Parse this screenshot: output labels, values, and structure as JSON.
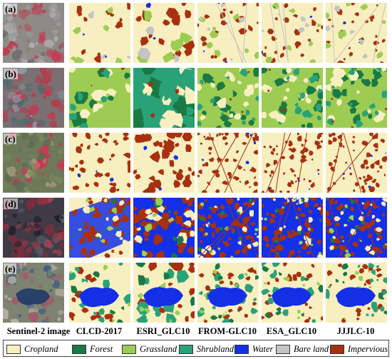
{
  "rows": [
    {
      "label": "(a)"
    },
    {
      "label": "(b)"
    },
    {
      "label": "(c)"
    },
    {
      "label": "(d)"
    },
    {
      "label": "(e)"
    }
  ],
  "columns": [
    {
      "label": "Sentinel-2 image"
    },
    {
      "label": "CLCD-2017"
    },
    {
      "label": "ESRI_GLC10"
    },
    {
      "label": "FROM-GLC10"
    },
    {
      "label": "ESA_GLC10"
    },
    {
      "label": "JJJLC-10"
    }
  ],
  "legend": [
    {
      "label": "Cropland",
      "color": "#f8efc0"
    },
    {
      "label": "Forest",
      "color": "#1a7a45"
    },
    {
      "label": "Grassland",
      "color": "#9dcc52"
    },
    {
      "label": "Shrubland",
      "color": "#2aa278"
    },
    {
      "label": "Water",
      "color": "#1430e6"
    },
    {
      "label": "Bare land",
      "color": "#c4c4c4"
    },
    {
      "label": "Impervious",
      "color": "#a8300f"
    }
  ]
}
